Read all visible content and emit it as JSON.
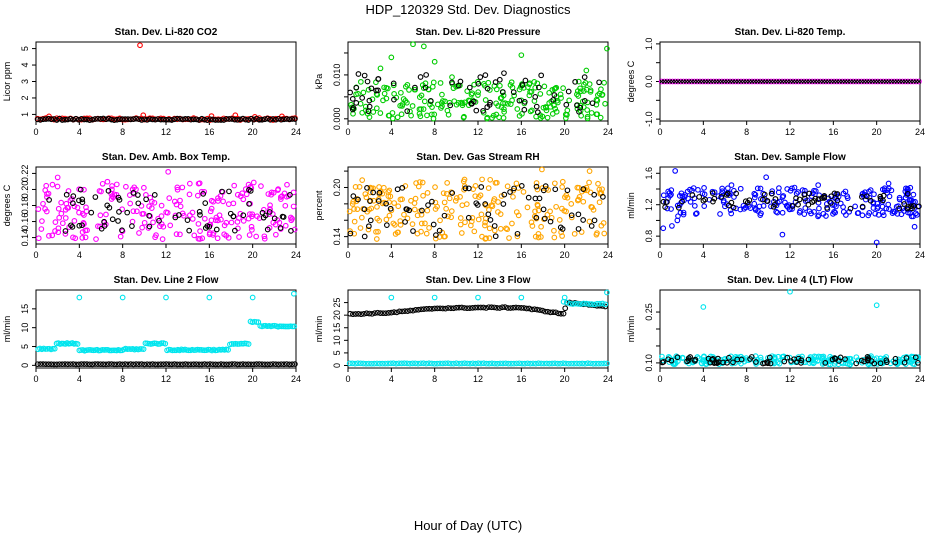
{
  "page": {
    "title": "HDP_120329  Std. Dev. Diagnostics",
    "xlabel": "Hour of Day (UTC)"
  },
  "chart_data": [
    {
      "type": "scatter",
      "title": "Stan. Dev. Li-820 CO2",
      "ylabel": "Licor ppm",
      "xlim": [
        0,
        24
      ],
      "ylim": [
        0.6,
        5.4
      ],
      "xticks": [
        0,
        4,
        8,
        12,
        16,
        20,
        24
      ],
      "yticks": [
        1,
        2,
        3,
        4,
        5
      ],
      "yticklabels": [
        "1",
        "2",
        "3",
        "4",
        "5"
      ],
      "grid": false,
      "series": [
        {
          "color": "#ff0000",
          "marker": "circle",
          "kind": "band",
          "base": 0.72,
          "spread": 0.06,
          "outliers": [
            [
              9.6,
              5.2
            ],
            [
              1.2,
              0.88
            ],
            [
              9.9,
              0.95
            ],
            [
              16.2,
              0.9
            ],
            [
              18.4,
              0.95
            ],
            [
              20.2,
              0.85
            ],
            [
              22.7,
              0.88
            ]
          ]
        },
        {
          "color": "#000000",
          "marker": "circle",
          "kind": "band",
          "base": 0.7,
          "spread": 0.05,
          "outliers": []
        }
      ]
    },
    {
      "type": "scatter",
      "title": "Stan. Dev. Li-820 Pressure",
      "ylabel": "kPa",
      "xlim": [
        0,
        24
      ],
      "ylim": [
        -0.0005,
        0.0175
      ],
      "xticks": [
        0,
        4,
        8,
        12,
        16,
        20,
        24
      ],
      "yticks": [
        0.0,
        0.005,
        0.01,
        0.015
      ],
      "yticklabels": [
        "0.000",
        "",
        "0.010",
        ""
      ],
      "grid": false,
      "series": [
        {
          "color": "#00cc00",
          "marker": "circle",
          "kind": "noise",
          "lo": 0.0,
          "hi": 0.0085,
          "outliers": [
            [
              3.0,
              0.0115
            ],
            [
              4.0,
              0.014
            ],
            [
              6.0,
              0.017
            ],
            [
              7.0,
              0.0165
            ],
            [
              8.0,
              0.013
            ],
            [
              16.0,
              0.0145
            ],
            [
              23.9,
              0.016
            ],
            [
              9.6,
              0.0095
            ],
            [
              22.0,
              0.011
            ]
          ]
        },
        {
          "color": "#000000",
          "marker": "circle",
          "kind": "noise",
          "lo": 0.0015,
          "hi": 0.011,
          "outliers": []
        }
      ]
    },
    {
      "type": "scatter",
      "title": "Stan. Dev. Li-820 Temp.",
      "ylabel": "degrees C",
      "xlim": [
        0,
        24
      ],
      "ylim": [
        -1.05,
        1.05
      ],
      "xticks": [
        0,
        4,
        8,
        12,
        16,
        20,
        24
      ],
      "yticks": [
        -1.0,
        -0.5,
        0.0,
        0.5,
        1.0
      ],
      "yticklabels": [
        "-1.0",
        "",
        "0.0",
        "",
        "1.0"
      ],
      "grid": false,
      "series": [
        {
          "color": "#ff00ff",
          "marker": "circle",
          "kind": "band",
          "base": 0.0,
          "spread": 0.0,
          "outliers": []
        },
        {
          "color": "#000000",
          "marker": "x",
          "kind": "band",
          "base": 0.0,
          "spread": 0.0,
          "outliers": []
        }
      ]
    },
    {
      "type": "scatter",
      "title": "Stan. Dev. Amb. Box Temp.",
      "ylabel": "degrees C",
      "xlim": [
        0,
        24
      ],
      "ylim": [
        0.132,
        0.228
      ],
      "xticks": [
        0,
        4,
        8,
        12,
        16,
        20,
        24
      ],
      "yticks": [
        0.14,
        0.16,
        0.18,
        0.2,
        0.22
      ],
      "yticklabels": [
        "0.14",
        "0.16",
        "0.18",
        "0.20",
        "0.22"
      ],
      "grid": false,
      "series": [
        {
          "color": "#ff00ff",
          "marker": "circle",
          "kind": "noise",
          "lo": 0.138,
          "hi": 0.21,
          "outliers": [
            [
              12.2,
              0.222
            ],
            [
              2.0,
              0.215
            ]
          ]
        },
        {
          "color": "#000000",
          "marker": "circle",
          "kind": "noise",
          "lo": 0.148,
          "hi": 0.2,
          "outliers": []
        }
      ]
    },
    {
      "type": "scatter",
      "title": "Stan. Dev. Gas Stream RH",
      "ylabel": "percent",
      "xlim": [
        0,
        24
      ],
      "ylim": [
        0.131,
        0.225
      ],
      "xticks": [
        0,
        4,
        8,
        12,
        16,
        20,
        24
      ],
      "yticks": [
        0.14,
        0.16,
        0.18,
        0.2,
        0.22
      ],
      "yticklabels": [
        "0.14",
        "",
        "",
        "0.20",
        ""
      ],
      "grid": false,
      "series": [
        {
          "color": "#ffa500",
          "marker": "circle",
          "kind": "noise",
          "lo": 0.137,
          "hi": 0.21,
          "outliers": [
            [
              17.9,
              0.222
            ],
            [
              22.3,
              0.22
            ]
          ]
        },
        {
          "color": "#000000",
          "marker": "circle",
          "kind": "noise",
          "lo": 0.14,
          "hi": 0.202,
          "outliers": []
        }
      ]
    },
    {
      "type": "scatter",
      "title": "Stan. Dev. Sample Flow",
      "ylabel": "ml/min",
      "xlim": [
        0,
        24
      ],
      "ylim": [
        0.7,
        1.68
      ],
      "xticks": [
        0,
        4,
        8,
        12,
        16,
        20,
        24
      ],
      "yticks": [
        0.8,
        1.0,
        1.2,
        1.4,
        1.6
      ],
      "yticklabels": [
        "0.8",
        "",
        "1.2",
        "",
        "1.6"
      ],
      "grid": false,
      "series": [
        {
          "color": "#0000ff",
          "marker": "circle",
          "kind": "noise",
          "lo": 1.05,
          "hi": 1.42,
          "outliers": [
            [
              1.4,
              1.63
            ],
            [
              1.1,
              0.93
            ],
            [
              1.6,
              1.0
            ],
            [
              0.3,
              0.9
            ],
            [
              6.6,
              1.45
            ],
            [
              9.8,
              1.55
            ],
            [
              11.3,
              0.82
            ],
            [
              14.6,
              1.45
            ],
            [
              20.0,
              0.72
            ],
            [
              21.1,
              1.47
            ],
            [
              23.5,
              0.92
            ]
          ]
        },
        {
          "color": "#000000",
          "marker": "circle",
          "kind": "noise",
          "lo": 1.15,
          "hi": 1.35,
          "outliers": []
        }
      ]
    },
    {
      "type": "scatter",
      "title": "Stan. Dev. Line 2 Flow",
      "ylabel": "ml/min",
      "xlim": [
        0,
        24
      ],
      "ylim": [
        -0.7,
        20.0
      ],
      "xticks": [
        0,
        4,
        8,
        12,
        16,
        20,
        24
      ],
      "yticks": [
        0,
        5,
        10,
        15
      ],
      "yticklabels": [
        "0",
        "5",
        "10",
        "15"
      ],
      "grid": false,
      "series": [
        {
          "color": "#00e5ee",
          "marker": "circle",
          "kind": "steps",
          "steps": [
            [
              0.2,
              1.9,
              4.4
            ],
            [
              1.9,
              4.0,
              5.8
            ],
            [
              4.0,
              8.1,
              4.0
            ],
            [
              8.1,
              10.1,
              4.3
            ],
            [
              10.1,
              12.1,
              5.8
            ],
            [
              12.1,
              17.9,
              4.1
            ],
            [
              17.9,
              19.8,
              5.7
            ],
            [
              19.8,
              20.7,
              11.5
            ],
            [
              20.7,
              24.0,
              10.4
            ]
          ],
          "outliers": [
            [
              4.0,
              18.0
            ],
            [
              8.0,
              18.0
            ],
            [
              12.0,
              18.0
            ],
            [
              16.0,
              18.0
            ],
            [
              20.0,
              18.0
            ],
            [
              23.8,
              19.0
            ]
          ]
        },
        {
          "color": "#000000",
          "marker": "circle",
          "kind": "band",
          "base": 0.3,
          "spread": 0.05,
          "outliers": []
        }
      ]
    },
    {
      "type": "scatter",
      "title": "Stan. Dev. Line 3 Flow",
      "ylabel": "ml/min",
      "xlim": [
        0,
        24
      ],
      "ylim": [
        -1.0,
        30.0
      ],
      "xticks": [
        0,
        4,
        8,
        12,
        16,
        20,
        24
      ],
      "yticks": [
        0,
        5,
        10,
        15,
        20,
        25
      ],
      "yticklabels": [
        "0",
        "5",
        "10",
        "15",
        "20",
        "25"
      ],
      "grid": false,
      "series": [
        {
          "color": "#00e5ee",
          "marker": "circle",
          "kind": "band",
          "base": 0.8,
          "spread": 0.1,
          "outliers": [
            [
              4.0,
              27.0
            ],
            [
              8.0,
              27.0
            ],
            [
              12.0,
              27.0
            ],
            [
              16.0,
              27.0
            ],
            [
              20.0,
              27.0
            ],
            [
              23.9,
              29.0
            ]
          ]
        },
        {
          "color": "#000000",
          "marker": "circle",
          "kind": "curve",
          "curve": [
            [
              0.2,
              20.4
            ],
            [
              4.0,
              21.0
            ],
            [
              8.0,
              22.7
            ],
            [
              12.0,
              23.0
            ],
            [
              16.0,
              23.0
            ],
            [
              19.9,
              20.5
            ],
            [
              20.2,
              25.0
            ],
            [
              24.0,
              23.5
            ]
          ],
          "outliers": []
        },
        {
          "color": "#00e5ee",
          "marker": "circle",
          "kind": "curve",
          "curve": [
            [
              19.9,
              25.3
            ],
            [
              20.5,
              24.4
            ],
            [
              24.0,
              24.5
            ]
          ],
          "outliers": []
        }
      ]
    },
    {
      "type": "scatter",
      "title": "Stan. Dev. Line 4 (LT) Flow",
      "ylabel": "ml/min",
      "xlim": [
        0,
        24
      ],
      "ylim": [
        0.085,
        0.315
      ],
      "xticks": [
        0,
        4,
        8,
        12,
        16,
        20,
        24
      ],
      "yticks": [
        0.1,
        0.15,
        0.2,
        0.25
      ],
      "yticklabels": [
        "0.10",
        "",
        "",
        "0.25"
      ],
      "grid": false,
      "series": [
        {
          "color": "#00e5ee",
          "marker": "circle",
          "kind": "noise",
          "lo": 0.095,
          "hi": 0.12,
          "outliers": [
            [
              4.0,
              0.265
            ],
            [
              12.0,
              0.31
            ],
            [
              20.0,
              0.27
            ]
          ]
        },
        {
          "color": "#000000",
          "marker": "circle",
          "kind": "noise",
          "lo": 0.098,
          "hi": 0.118,
          "outliers": []
        }
      ]
    }
  ]
}
